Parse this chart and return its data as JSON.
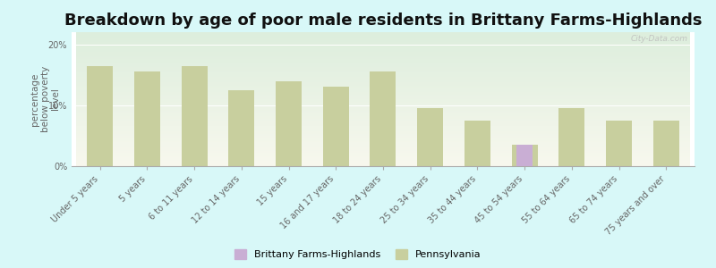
{
  "title": "Breakdown by age of poor male residents in Brittany Farms-Highlands",
  "ylabel": "percentage\nbelow poverty\nlevel",
  "categories": [
    "Under 5 years",
    "5 years",
    "6 to 11 years",
    "12 to 14 years",
    "15 years",
    "16 and 17 years",
    "18 to 24 years",
    "25 to 34 years",
    "35 to 44 years",
    "45 to 54 years",
    "55 to 64 years",
    "65 to 74 years",
    "75 years and over"
  ],
  "pa_values": [
    16.5,
    15.5,
    16.5,
    12.5,
    14.0,
    13.0,
    15.5,
    9.5,
    7.5,
    3.5,
    9.5,
    7.5,
    7.5
  ],
  "bfh_values": [
    0,
    0,
    0,
    0,
    0,
    0,
    0,
    0,
    0,
    3.5,
    0,
    0,
    0
  ],
  "pa_color": "#c8cf9e",
  "bfh_color": "#c9aed4",
  "background_color": "#d8f8f8",
  "plot_bg_top": "#f8f8ee",
  "plot_bg_bottom": "#ddeedd",
  "ylim": [
    0,
    22
  ],
  "yticks": [
    0,
    10,
    20
  ],
  "ytick_labels": [
    "0%",
    "10%",
    "20%"
  ],
  "title_fontsize": 13,
  "ylabel_fontsize": 7.5,
  "tick_fontsize": 7,
  "legend_labels": [
    "Brittany Farms-Highlands",
    "Pennsylvania"
  ],
  "watermark": "City-Data.com"
}
